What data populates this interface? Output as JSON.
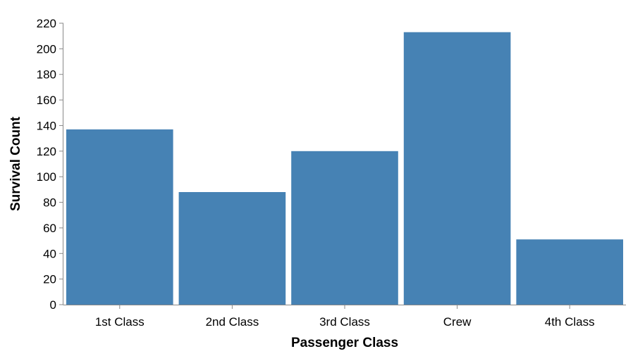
{
  "chart_data": {
    "type": "bar",
    "title": "",
    "xlabel": "Passenger Class",
    "ylabel": "Survival Count",
    "categories": [
      "1st Class",
      "2nd Class",
      "3rd Class",
      "Crew",
      "4th Class"
    ],
    "values": [
      137,
      88,
      120,
      213,
      51
    ],
    "ylim": [
      0,
      220
    ],
    "yticks": [
      0,
      20,
      40,
      60,
      80,
      100,
      120,
      140,
      160,
      180,
      200,
      220
    ],
    "grid": false,
    "bar_color": "#4682b4",
    "axis_color": "#888888"
  }
}
